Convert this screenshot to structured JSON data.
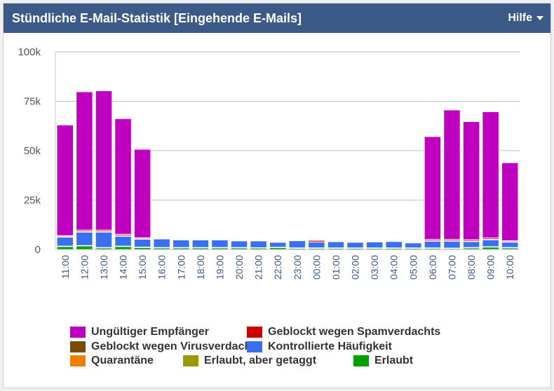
{
  "header": {
    "title": "Stündliche E-Mail-Statistik [Eingehende E-Mails]",
    "help_label": "Hilfe"
  },
  "colors": {
    "ungueltig": "#bf00bf",
    "spam": "#cc0000",
    "virus": "#7a4a00",
    "kontrolliert": "#3a6ff0",
    "quarantaene": "#f07f00",
    "getaggt": "#999900",
    "erlaubt": "#00a000"
  },
  "chart_data": {
    "type": "bar",
    "stacked": true,
    "categories": [
      "11:00",
      "12:00",
      "13:00",
      "14:00",
      "15:00",
      "16:00",
      "17:00",
      "18:00",
      "19:00",
      "20:00",
      "21:00",
      "22:00",
      "23:00",
      "00:00",
      "01:00",
      "02:00",
      "03:00",
      "04:00",
      "05:00",
      "06:00",
      "07:00",
      "08:00",
      "09:00",
      "10:00"
    ],
    "ylim": [
      0,
      100000
    ],
    "yticks": [
      {
        "value": 0,
        "label": "0"
      },
      {
        "value": 25000,
        "label": "25k"
      },
      {
        "value": 50000,
        "label": "50k"
      },
      {
        "value": 75000,
        "label": "75k"
      },
      {
        "value": 100000,
        "label": "100k"
      }
    ],
    "grid": true,
    "legend_position": "bottom",
    "series": [
      {
        "name": "Erlaubt",
        "color_key": "erlaubt",
        "values": [
          1500,
          1800,
          800,
          1500,
          1000,
          800,
          800,
          800,
          800,
          800,
          700,
          900,
          600,
          600,
          600,
          600,
          600,
          600,
          600,
          600,
          500,
          800,
          1200,
          800
        ]
      },
      {
        "name": "Erlaubt, aber getaggt",
        "color_key": "getaggt",
        "values": [
          200,
          200,
          200,
          200,
          200,
          200,
          200,
          200,
          200,
          200,
          200,
          200,
          200,
          200,
          200,
          200,
          200,
          200,
          200,
          200,
          200,
          200,
          200,
          200
        ]
      },
      {
        "name": "Quarantäne",
        "color_key": "quarantaene",
        "values": [
          0,
          0,
          0,
          0,
          0,
          0,
          0,
          0,
          0,
          0,
          0,
          0,
          0,
          0,
          0,
          0,
          0,
          0,
          0,
          0,
          0,
          0,
          0,
          0
        ]
      },
      {
        "name": "Kontrollierte Häufigkeit",
        "color_key": "kontrolliert",
        "values": [
          4500,
          6800,
          7800,
          5000,
          4000,
          4300,
          3800,
          3800,
          3800,
          3300,
          3400,
          2500,
          3600,
          3000,
          3100,
          2800,
          3000,
          3200,
          2500,
          3400,
          3500,
          3000,
          3500,
          2700
        ]
      },
      {
        "name": "Geblockt wegen Virusverdachts",
        "color_key": "virus",
        "values": [
          300,
          300,
          300,
          300,
          200,
          0,
          0,
          0,
          0,
          0,
          0,
          0,
          0,
          0,
          0,
          0,
          0,
          0,
          0,
          200,
          200,
          200,
          200,
          200
        ]
      },
      {
        "name": "Geblockt wegen Spamverdachts",
        "color_key": "spam",
        "values": [
          500,
          700,
          700,
          700,
          500,
          0,
          0,
          0,
          0,
          0,
          0,
          0,
          0,
          800,
          0,
          0,
          0,
          0,
          0,
          700,
          700,
          700,
          700,
          500
        ]
      },
      {
        "name": "Ungültiger Empfänger",
        "color_key": "ungueltig",
        "values": [
          56000,
          70000,
          70500,
          58500,
          44800,
          0,
          0,
          0,
          0,
          0,
          0,
          0,
          0,
          0,
          0,
          0,
          0,
          0,
          0,
          52000,
          65500,
          59800,
          63900,
          39500
        ]
      }
    ]
  },
  "legend": [
    {
      "label": "Ungültiger Empfänger",
      "color_key": "ungueltig"
    },
    {
      "label": "Geblockt wegen Spamverdachts",
      "color_key": "spam"
    },
    {
      "label": "Geblockt wegen Virusverdachts",
      "color_key": "virus"
    },
    {
      "label": "Kontrollierte Häufigkeit",
      "color_key": "kontrolliert"
    },
    {
      "label": "Quarantäne",
      "color_key": "quarantaene"
    },
    {
      "label": "Erlaubt, aber getaggt",
      "color_key": "getaggt"
    },
    {
      "label": "Erlaubt",
      "color_key": "erlaubt"
    }
  ]
}
